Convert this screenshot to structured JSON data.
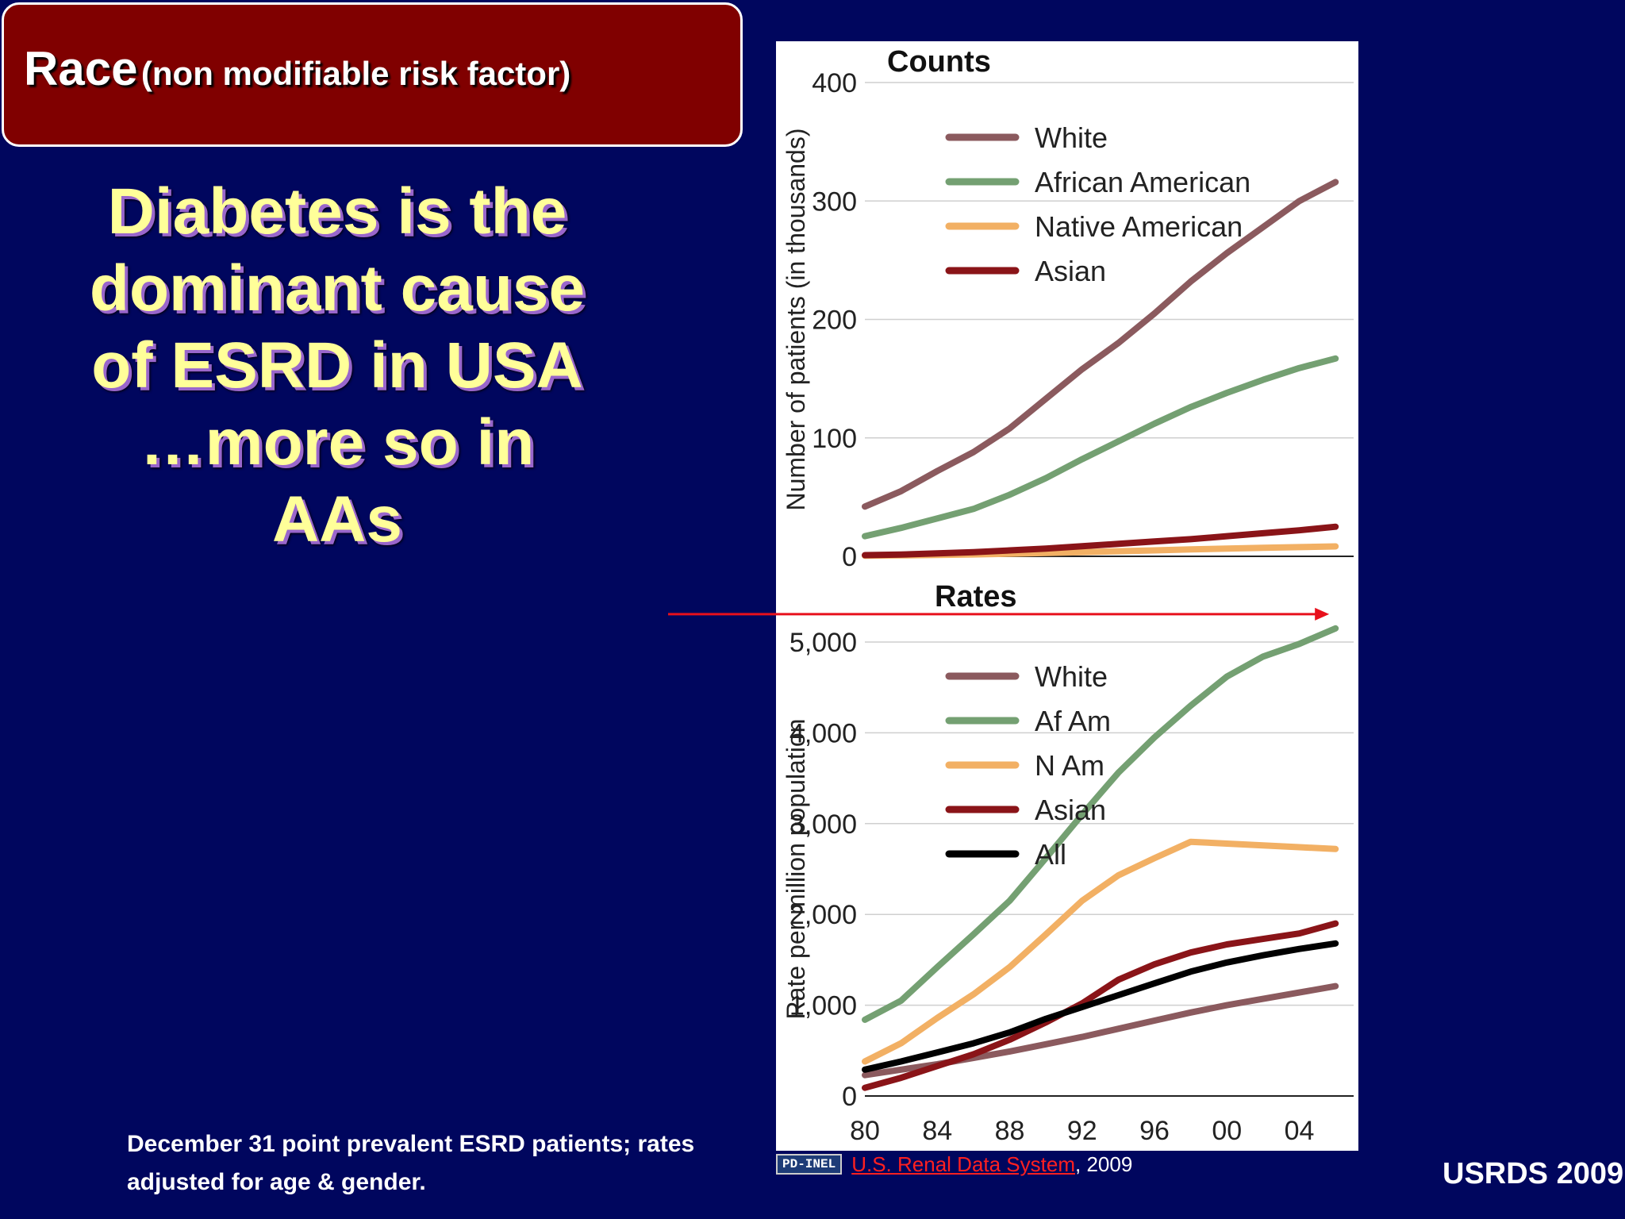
{
  "header": {
    "title": "Race",
    "subtitle": "(non modifiable risk factor)"
  },
  "headline": [
    "Diabetes is the",
    "dominant cause",
    "of ESRD in USA",
    "…more so in",
    "AAs"
  ],
  "footnote": [
    "December 31 point prevalent ESRD patients; rates",
    "adjusted for age & gender."
  ],
  "source": "USRDS 2009",
  "credit": {
    "license": "PD-INEL",
    "link_text": "U.S. Renal Data System",
    "year": ", 2009"
  },
  "colors": {
    "White": "#8b5a5e",
    "African American": "#74a072",
    "Native American": "#f2b064",
    "Asian": "#8a1418",
    "All": "#000000",
    "arrow": "#e8101c",
    "background": "#00065e",
    "title_box": "#800000"
  },
  "chart_data": [
    {
      "type": "line",
      "title": "Counts",
      "ylabel": "Number of patients (in thousands)",
      "ylim": [
        0,
        400
      ],
      "yticks": [
        "0",
        "100",
        "200",
        "300",
        "400"
      ],
      "x": [
        1980,
        1982,
        1984,
        1986,
        1988,
        1990,
        1992,
        1994,
        1996,
        1998,
        2000,
        2002,
        2004,
        2006
      ],
      "legend_position": "top-left",
      "series": [
        {
          "name": "White",
          "values": [
            42,
            55,
            72,
            88,
            108,
            133,
            158,
            180,
            205,
            232,
            256,
            278,
            300,
            316
          ]
        },
        {
          "name": "African American",
          "values": [
            17,
            24,
            32,
            40,
            52,
            66,
            82,
            97,
            112,
            126,
            138,
            149,
            159,
            167
          ]
        },
        {
          "name": "Native American",
          "values": [
            0.5,
            0.8,
            1.2,
            1.6,
            2.2,
            2.8,
            3.5,
            4.3,
            5.0,
            5.8,
            6.5,
            7.2,
            7.8,
            8.4
          ]
        },
        {
          "name": "Asian",
          "values": [
            1,
            1.5,
            2.5,
            3.5,
            5,
            6.5,
            8.5,
            10.5,
            12.5,
            14.5,
            17,
            19.5,
            22,
            25
          ]
        }
      ]
    },
    {
      "type": "line",
      "title": "Rates",
      "ylabel": "Rate per million population",
      "ylim": [
        0,
        5000
      ],
      "yticks": [
        "0",
        "1,000",
        "2,000",
        "3,000",
        "4,000",
        "5,000"
      ],
      "xticks": [
        "80",
        "84",
        "88",
        "92",
        "96",
        "00",
        "04"
      ],
      "x": [
        1980,
        1982,
        1984,
        1986,
        1988,
        1990,
        1992,
        1994,
        1996,
        1998,
        2000,
        2002,
        2004,
        2006
      ],
      "legend_position": "top-left",
      "series": [
        {
          "name": "White",
          "values": [
            230,
            290,
            350,
            420,
            490,
            570,
            650,
            740,
            830,
            920,
            1000,
            1070,
            1140,
            1210
          ]
        },
        {
          "name": "Af Am",
          "values": [
            840,
            1050,
            1420,
            1780,
            2150,
            2620,
            3100,
            3560,
            3950,
            4300,
            4620,
            4840,
            4980,
            5150
          ]
        },
        {
          "name": "N Am",
          "values": [
            380,
            580,
            860,
            1120,
            1420,
            1780,
            2150,
            2430,
            2620,
            2800,
            2780,
            2760,
            2740,
            2720
          ]
        },
        {
          "name": "Asian",
          "values": [
            90,
            200,
            330,
            460,
            620,
            810,
            1020,
            1280,
            1450,
            1580,
            1670,
            1730,
            1790,
            1900
          ]
        },
        {
          "name": "All",
          "values": [
            290,
            380,
            480,
            580,
            700,
            850,
            980,
            1110,
            1240,
            1370,
            1470,
            1550,
            1620,
            1680
          ]
        }
      ],
      "annotation": "red arrow pointing to Af Am 2006 value"
    }
  ]
}
